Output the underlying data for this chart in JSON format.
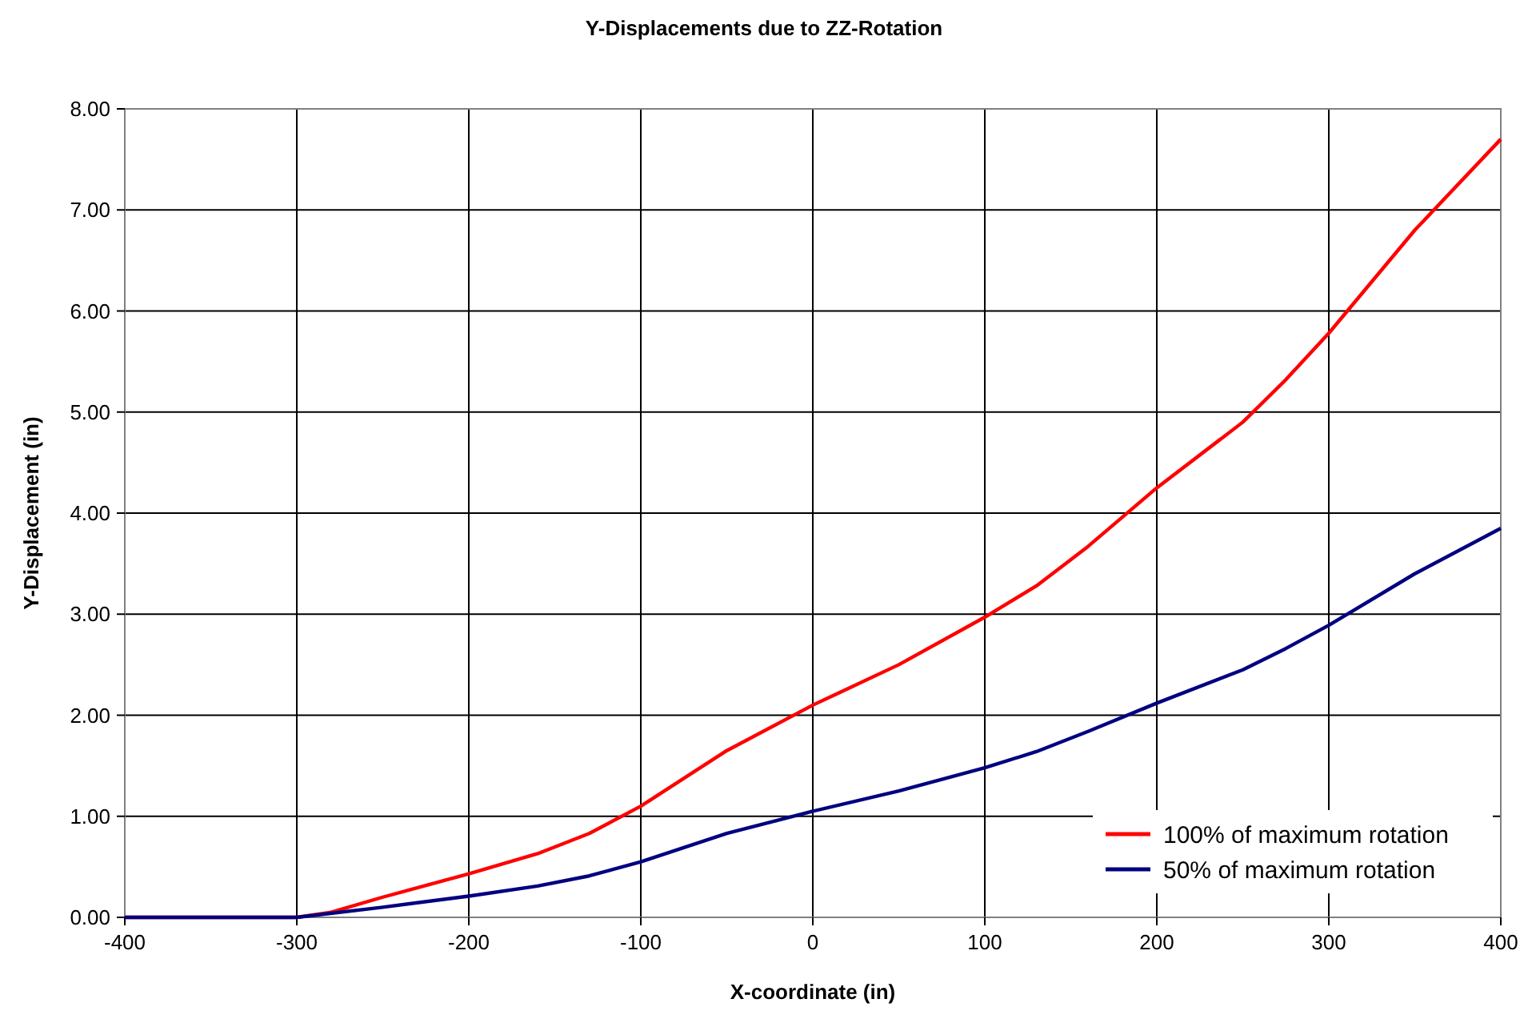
{
  "chart_data": {
    "type": "line",
    "title": "Y-Displacements due to ZZ-Rotation",
    "xlabel": "X-coordinate (in)",
    "ylabel": "Y-Displacement (in)",
    "xlim": [
      -400,
      400
    ],
    "xticks": [
      -400,
      -300,
      -200,
      -100,
      0,
      100,
      200,
      300,
      400
    ],
    "ylim": [
      0,
      8
    ],
    "yticks": [
      {
        "value": 0,
        "label": "0.00"
      },
      {
        "value": 1,
        "label": "1.00"
      },
      {
        "value": 2,
        "label": "2.00"
      },
      {
        "value": 3,
        "label": "3.00"
      },
      {
        "value": 4,
        "label": "4.00"
      },
      {
        "value": 5,
        "label": "5.00"
      },
      {
        "value": 6,
        "label": "6.00"
      },
      {
        "value": 7,
        "label": "7.00"
      },
      {
        "value": 8,
        "label": "8.00"
      }
    ],
    "grid": true,
    "legend": "bottom right",
    "marker": "none",
    "line_style": "solid",
    "series": [
      {
        "name": "100% of maximum rotation",
        "color": "#ff0000",
        "x": [
          -400,
          -300,
          -280,
          -250,
          -200,
          -160,
          -130,
          -100,
          -50,
          0,
          15,
          50,
          100,
          130,
          160,
          200,
          250,
          275,
          300,
          350,
          400
        ],
        "values": [
          0,
          0,
          0.05,
          0.2,
          0.43,
          0.63,
          0.83,
          1.1,
          1.65,
          2.1,
          2.22,
          2.5,
          2.97,
          3.28,
          3.67,
          4.25,
          4.9,
          5.32,
          5.78,
          6.8,
          7.7
        ]
      },
      {
        "name": "50% of maximum rotation",
        "color": "#000080",
        "x": [
          -400,
          -300,
          -250,
          -200,
          -160,
          -130,
          -100,
          -50,
          0,
          50,
          100,
          130,
          160,
          200,
          250,
          275,
          300,
          350,
          400
        ],
        "values": [
          0,
          0,
          0.1,
          0.21,
          0.31,
          0.41,
          0.55,
          0.83,
          1.05,
          1.25,
          1.48,
          1.64,
          1.84,
          2.12,
          2.45,
          2.66,
          2.89,
          3.4,
          3.85
        ]
      }
    ]
  }
}
